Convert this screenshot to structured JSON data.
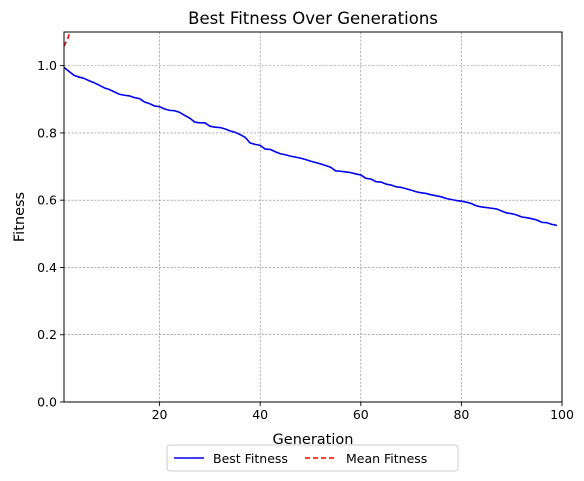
{
  "chart_data": {
    "type": "line",
    "title": "Best Fitness Over Generations",
    "xlabel": "Generation",
    "ylabel": "Fitness",
    "xlim": [
      1,
      100
    ],
    "ylim": [
      0,
      1.1
    ],
    "x_ticks": [
      20,
      40,
      60,
      80,
      100
    ],
    "y_ticks": [
      0.0,
      0.2,
      0.4,
      0.6,
      0.8,
      1.0
    ],
    "x_tick_labels": [
      "20",
      "40",
      "60",
      "80",
      "100"
    ],
    "y_tick_labels": [
      "0.0",
      "0.2",
      "0.4",
      "0.6",
      "0.8",
      "1.0"
    ],
    "grid": true,
    "legend_position": "bottom-center, below axes",
    "series": [
      {
        "name": "Best Fitness",
        "color": "#0000ee",
        "linestyle": "solid",
        "x": [
          1,
          2,
          3,
          4,
          5,
          6,
          7,
          8,
          9,
          10,
          11,
          12,
          13,
          14,
          15,
          16,
          17,
          18,
          19,
          20,
          21,
          22,
          23,
          24,
          25,
          26,
          27,
          28,
          29,
          30,
          31,
          32,
          33,
          34,
          35,
          36,
          37,
          38,
          39,
          40,
          41,
          42,
          43,
          44,
          45,
          46,
          47,
          48,
          49,
          50,
          51,
          52,
          53,
          54,
          55,
          56,
          57,
          58,
          59,
          60,
          61,
          62,
          63,
          64,
          65,
          66,
          67,
          68,
          69,
          70,
          71,
          72,
          73,
          74,
          75,
          76,
          77,
          78,
          79,
          80,
          81,
          82,
          83,
          84,
          85,
          86,
          87,
          88,
          89,
          90,
          91,
          92,
          93,
          94,
          95,
          96,
          97,
          98,
          99
        ],
        "values": [
          0.995,
          0.983,
          0.971,
          0.966,
          0.962,
          0.955,
          0.949,
          0.942,
          0.934,
          0.929,
          0.922,
          0.915,
          0.912,
          0.91,
          0.905,
          0.902,
          0.892,
          0.887,
          0.88,
          0.878,
          0.871,
          0.867,
          0.866,
          0.861,
          0.852,
          0.844,
          0.832,
          0.83,
          0.83,
          0.82,
          0.817,
          0.816,
          0.812,
          0.806,
          0.802,
          0.795,
          0.787,
          0.77,
          0.766,
          0.763,
          0.752,
          0.751,
          0.744,
          0.738,
          0.735,
          0.731,
          0.728,
          0.725,
          0.721,
          0.716,
          0.712,
          0.708,
          0.703,
          0.698,
          0.687,
          0.686,
          0.684,
          0.682,
          0.678,
          0.675,
          0.665,
          0.663,
          0.655,
          0.654,
          0.648,
          0.645,
          0.64,
          0.638,
          0.634,
          0.63,
          0.625,
          0.622,
          0.62,
          0.616,
          0.613,
          0.61,
          0.605,
          0.602,
          0.599,
          0.597,
          0.594,
          0.59,
          0.583,
          0.58,
          0.578,
          0.576,
          0.574,
          0.568,
          0.562,
          0.56,
          0.556,
          0.55,
          0.548,
          0.545,
          0.541,
          0.534,
          0.533,
          0.528,
          0.525
        ]
      },
      {
        "name": "Mean Fitness",
        "color": "#ff0000",
        "linestyle": "dashed",
        "x": [
          1,
          1.8,
          2.1,
          2.4
        ],
        "values": [
          1.058,
          1.082,
          1.098,
          1.112
        ]
      }
    ]
  }
}
